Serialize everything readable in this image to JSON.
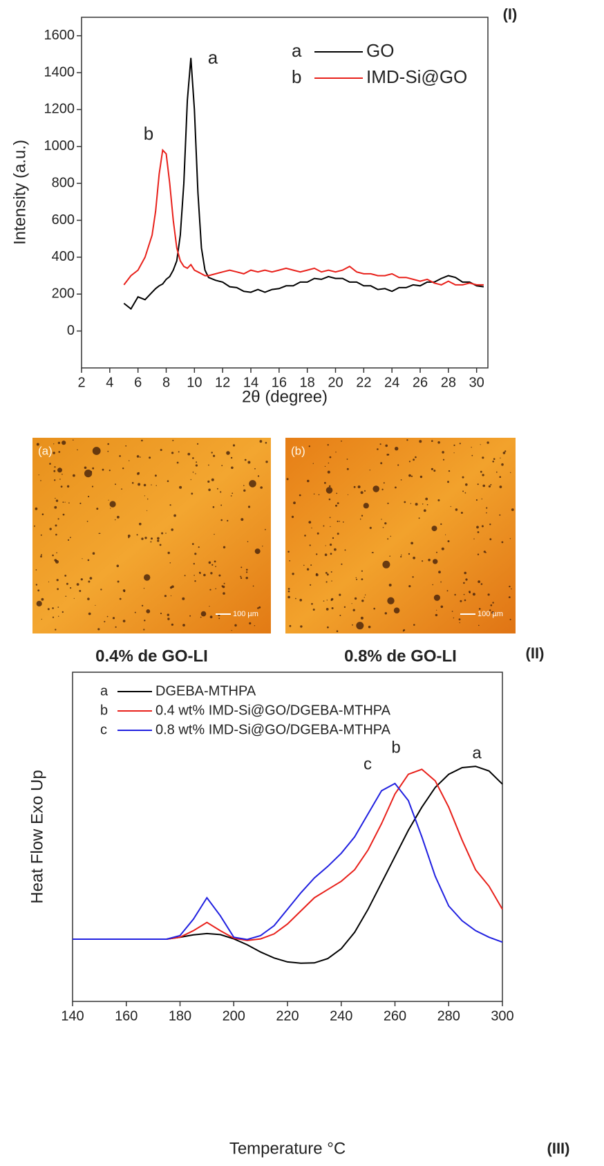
{
  "chart_data": [
    {
      "type": "line",
      "panel_label": "(I)",
      "xlabel": "2θ (degree)",
      "ylabel": "Intensity (a.u.)",
      "x": [
        5,
        5.5,
        6,
        6.5,
        7,
        7.25,
        7.5,
        7.75,
        8,
        8.25,
        8.5,
        8.75,
        9,
        9.25,
        9.5,
        9.75,
        10,
        10.25,
        10.5,
        10.75,
        11,
        11.5,
        12,
        12.5,
        13,
        13.5,
        14,
        14.5,
        15,
        15.5,
        16,
        16.5,
        17,
        17.5,
        18,
        18.5,
        19,
        19.5,
        20,
        20.5,
        21,
        21.5,
        22,
        22.5,
        23,
        23.5,
        24,
        24.5,
        25,
        25.5,
        26,
        26.5,
        27,
        27.5,
        28,
        28.5,
        29,
        29.5,
        30,
        30.5
      ],
      "series": [
        {
          "label": "a",
          "name": "GO",
          "color": "#000000",
          "values": [
            150,
            120,
            185,
            170,
            210,
            230,
            245,
            255,
            280,
            295,
            330,
            380,
            520,
            800,
            1250,
            1480,
            1200,
            750,
            450,
            330,
            290,
            275,
            265,
            240,
            235,
            215,
            210,
            225,
            210,
            225,
            230,
            245,
            245,
            265,
            265,
            285,
            280,
            295,
            285,
            285,
            265,
            265,
            245,
            245,
            225,
            230,
            215,
            235,
            235,
            250,
            245,
            265,
            265,
            285,
            300,
            290,
            265,
            265,
            245,
            240
          ]
        },
        {
          "label": "b",
          "name": "IMD-Si@GO",
          "color": "#e8201a",
          "values": [
            250,
            300,
            330,
            400,
            520,
            650,
            850,
            980,
            960,
            800,
            600,
            450,
            380,
            350,
            340,
            360,
            330,
            320,
            310,
            300,
            300,
            310,
            320,
            330,
            320,
            310,
            330,
            320,
            330,
            320,
            330,
            340,
            330,
            320,
            330,
            340,
            320,
            330,
            320,
            330,
            350,
            320,
            310,
            310,
            300,
            300,
            310,
            290,
            290,
            280,
            270,
            280,
            260,
            250,
            270,
            250,
            250,
            260,
            250,
            250
          ]
        }
      ],
      "annotations": [
        "a",
        "b"
      ],
      "xlim": [
        2,
        30.8
      ],
      "ylim": [
        -200,
        1700
      ],
      "xticks": [
        2,
        4,
        6,
        8,
        10,
        12,
        14,
        16,
        18,
        20,
        22,
        24,
        26,
        28,
        30
      ],
      "yticks": [
        0,
        200,
        400,
        600,
        800,
        1000,
        1200,
        1400,
        1600
      ]
    },
    {
      "type": "line",
      "panel_label": "(III)",
      "xlabel": "Temperature °C",
      "ylabel": "Heat Flow Exo Up",
      "x": [
        140,
        145,
        150,
        155,
        160,
        165,
        170,
        175,
        180,
        185,
        190,
        195,
        200,
        205,
        210,
        215,
        220,
        225,
        230,
        235,
        240,
        245,
        250,
        255,
        260,
        265,
        270,
        275,
        280,
        285,
        290,
        295,
        300
      ],
      "series": [
        {
          "label": "a",
          "name": "DGEBA-MTHPA",
          "color": "#000000",
          "values": [
            1.89,
            1.89,
            1.89,
            1.89,
            1.89,
            1.89,
            1.89,
            1.89,
            1.95,
            2.02,
            2.06,
            2.03,
            1.9,
            1.72,
            1.5,
            1.32,
            1.2,
            1.16,
            1.17,
            1.3,
            1.6,
            2.1,
            2.8,
            3.6,
            4.4,
            5.2,
            5.9,
            6.5,
            6.9,
            7.1,
            7.14,
            7.0,
            6.6
          ]
        },
        {
          "label": "b",
          "name": "0.4 wt% IMD-Si@GO/DGEBA-MTHPA",
          "color": "#e8201a",
          "values": [
            1.89,
            1.89,
            1.89,
            1.89,
            1.89,
            1.89,
            1.89,
            1.89,
            1.95,
            2.15,
            2.4,
            2.15,
            1.92,
            1.85,
            1.9,
            2.05,
            2.35,
            2.75,
            3.15,
            3.4,
            3.65,
            4.0,
            4.6,
            5.4,
            6.3,
            6.9,
            7.05,
            6.7,
            5.9,
            4.9,
            4.0,
            3.5,
            2.8
          ]
        },
        {
          "label": "c",
          "name": "0.8 wt% IMD-Si@GO/DGEBA-MTHPA",
          "color": "#2020e0",
          "values": [
            1.89,
            1.89,
            1.89,
            1.89,
            1.89,
            1.89,
            1.89,
            1.89,
            2.0,
            2.5,
            3.15,
            2.6,
            1.95,
            1.88,
            2.0,
            2.3,
            2.8,
            3.3,
            3.75,
            4.1,
            4.5,
            5.0,
            5.7,
            6.4,
            6.62,
            6.1,
            5.0,
            3.8,
            2.9,
            2.45,
            2.15,
            1.95,
            1.8
          ]
        }
      ],
      "annotations": [
        "a",
        "b",
        "c"
      ],
      "xlim": [
        140,
        300
      ],
      "ylim": [
        0,
        10
      ],
      "xticks": [
        140,
        160,
        180,
        200,
        220,
        240,
        260,
        280,
        300
      ]
    }
  ],
  "micrographs": {
    "panel_label": "(II)",
    "panels": [
      {
        "label": "(a)",
        "scale": "100 µm",
        "caption": "0.4% de GO-LI"
      },
      {
        "label": "(b)",
        "scale": "100 µm",
        "caption": "0.8% de GO-LI"
      }
    ]
  }
}
